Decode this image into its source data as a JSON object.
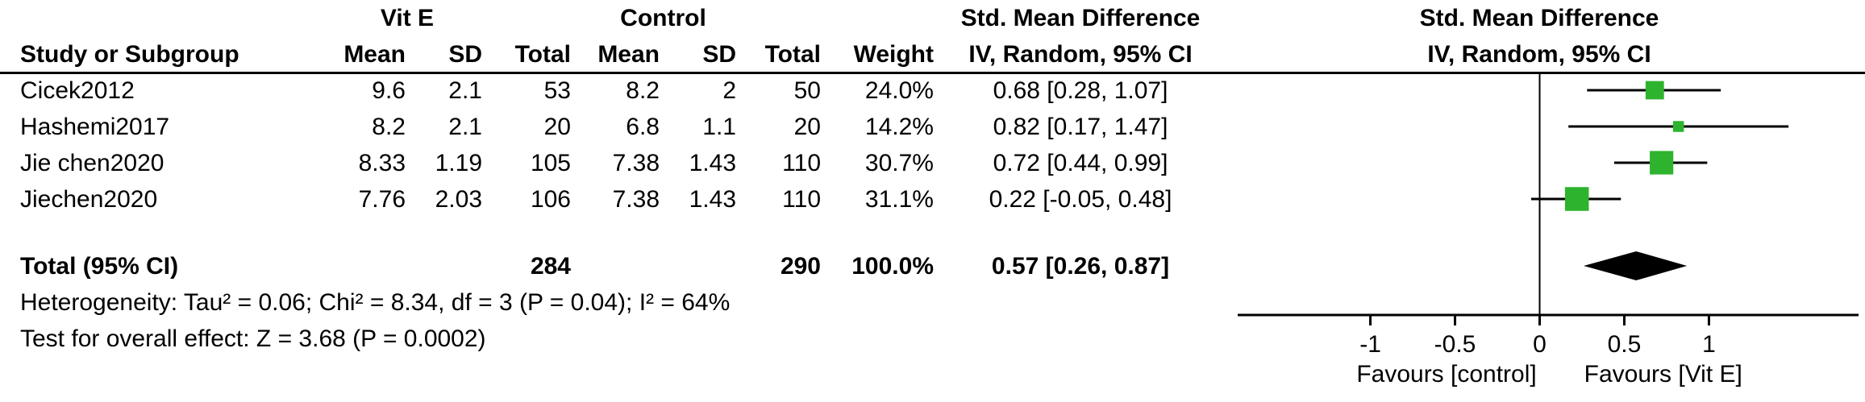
{
  "table": {
    "group1": "Vit E",
    "group2": "Control",
    "smd_col": "Std. Mean Difference",
    "smd_plot": "Std. Mean Difference",
    "ci_col": "IV, Random, 95% CI",
    "ci_plot": "IV, Random, 95% CI",
    "headers": {
      "study": "Study or Subgroup",
      "mean": "Mean",
      "sd": "SD",
      "total": "Total",
      "weight": "Weight"
    },
    "rows": [
      {
        "study": "Cicek2012",
        "mean1": "9.6",
        "sd1": "2.1",
        "total1": "53",
        "mean2": "8.2",
        "sd2": "2",
        "total2": "50",
        "weight": "24.0%",
        "ci": "0.68 [0.28, 1.07]"
      },
      {
        "study": "Hashemi2017",
        "mean1": "8.2",
        "sd1": "2.1",
        "total1": "20",
        "mean2": "6.8",
        "sd2": "1.1",
        "total2": "20",
        "weight": "14.2%",
        "ci": "0.82 [0.17, 1.47]"
      },
      {
        "study": "Jie chen2020",
        "mean1": "8.33",
        "sd1": "1.19",
        "total1": "105",
        "mean2": "7.38",
        "sd2": "1.43",
        "total2": "110",
        "weight": "30.7%",
        "ci": "0.72 [0.44, 0.99]"
      },
      {
        "study": "Jiechen2020",
        "mean1": "7.76",
        "sd1": "2.03",
        "total1": "106",
        "mean2": "7.38",
        "sd2": "1.43",
        "total2": "110",
        "weight": "31.1%",
        "ci": "0.22 [-0.05, 0.48]"
      }
    ],
    "total_row": {
      "label": "Total (95% CI)",
      "total1": "284",
      "total2": "290",
      "weight": "100.0%",
      "ci": "0.57 [0.26, 0.87]"
    },
    "heterogeneity": "Heterogeneity: Tau² = 0.06; Chi² = 8.34, df = 3 (P = 0.04); I² = 64%",
    "overall": "Test for overall effect: Z = 3.68 (P = 0.0002)"
  },
  "chart_data": {
    "type": "forest",
    "title": "Std. Mean Difference IV, Random, 95% CI",
    "x_ticks": [
      -1,
      -0.5,
      0,
      0.5,
      1
    ],
    "x_range": [
      -1.76,
      1.86
    ],
    "axis_label_left": "Favours [control]",
    "axis_label_right": "Favours [Vit E]",
    "marker_color": "#2eb32e",
    "diamond_color": "#000000",
    "studies": [
      {
        "name": "Cicek2012",
        "est": 0.68,
        "lo": 0.28,
        "hi": 1.07,
        "weight_pct": 24.0
      },
      {
        "name": "Hashemi2017",
        "est": 0.82,
        "lo": 0.17,
        "hi": 1.47,
        "weight_pct": 14.2
      },
      {
        "name": "Jie chen2020",
        "est": 0.72,
        "lo": 0.44,
        "hi": 0.99,
        "weight_pct": 30.7
      },
      {
        "name": "Jiechen2020",
        "est": 0.22,
        "lo": -0.05,
        "hi": 0.48,
        "weight_pct": 31.1
      }
    ],
    "total": {
      "name": "Total (95% CI)",
      "est": 0.57,
      "lo": 0.26,
      "hi": 0.87,
      "weight_pct": 100.0
    }
  }
}
